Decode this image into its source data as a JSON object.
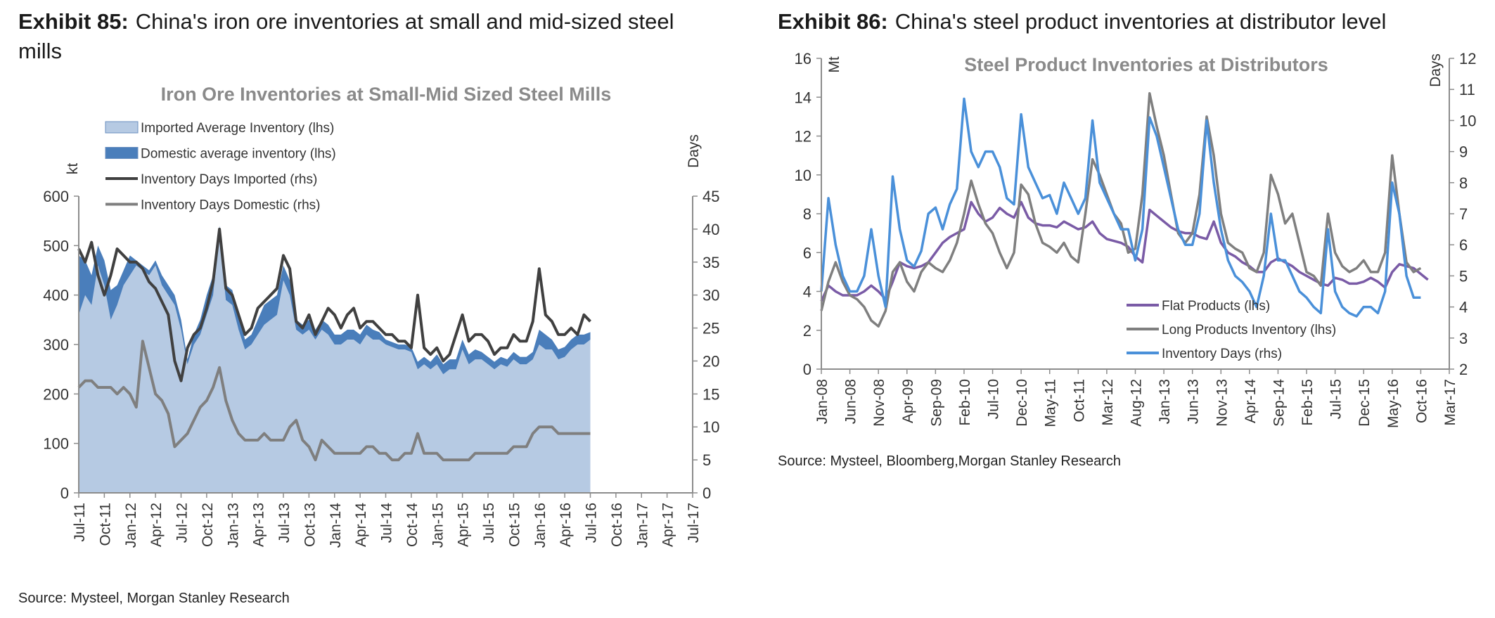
{
  "chart_data": [
    {
      "exhibit_label": "Exhibit 85:",
      "exhibit_title": "China's iron ore inventories at small and mid-sized steel mills",
      "title": "Iron Ore Inventories at Small-Mid Sized Steel Mills",
      "type": "area",
      "ylabel": "kt",
      "y2label": "Days",
      "ylim": [
        0,
        600
      ],
      "y2lim": [
        0,
        45
      ],
      "y_ticks": [
        "0",
        "100",
        "200",
        "300",
        "400",
        "500",
        "600"
      ],
      "y2_ticks": [
        "0",
        "5",
        "10",
        "15",
        "20",
        "25",
        "30",
        "35",
        "40",
        "45"
      ],
      "x_ticks": [
        "Jul-11",
        "Oct-11",
        "Jan-12",
        "Apr-12",
        "Jul-12",
        "Oct-12",
        "Jan-13",
        "Apr-13",
        "Jul-13",
        "Oct-13",
        "Jan-14",
        "Apr-14",
        "Jul-14",
        "Oct-14",
        "Jan-15",
        "Apr-15",
        "Jul-15",
        "Oct-15",
        "Jan-16",
        "Apr-16",
        "Jul-16",
        "Oct-16",
        "Jan-17",
        "Apr-17",
        "Jul-17"
      ],
      "x_start": "Jul-11",
      "legend_position": "top-left",
      "grid": false,
      "x_step": 0.25,
      "series": [
        {
          "name": "Imported Average Inventory (lhs)",
          "kind": "area",
          "axis": "lhs",
          "color": "#b6cae3",
          "values": [
            360,
            400,
            380,
            460,
            420,
            350,
            380,
            420,
            440,
            460,
            450,
            440,
            460,
            420,
            400,
            380,
            330,
            260,
            300,
            320,
            360,
            400,
            520,
            390,
            380,
            330,
            290,
            300,
            320,
            340,
            350,
            360,
            430,
            400,
            330,
            320,
            330,
            310,
            330,
            320,
            300,
            300,
            310,
            310,
            300,
            320,
            310,
            310,
            300,
            295,
            290,
            290,
            285,
            250,
            260,
            250,
            260,
            240,
            250,
            250,
            290,
            260,
            270,
            270,
            260,
            250,
            260,
            255,
            270,
            260,
            260,
            270,
            300,
            290,
            290,
            270,
            275,
            290,
            300,
            300,
            310
          ]
        },
        {
          "name": "Domestic average inventory (lhs)",
          "kind": "area",
          "axis": "lhs",
          "color": "#4a7ebb",
          "values": [
            480,
            470,
            440,
            500,
            470,
            410,
            420,
            450,
            480,
            470,
            460,
            450,
            470,
            440,
            420,
            400,
            350,
            270,
            320,
            350,
            400,
            440,
            540,
            420,
            410,
            360,
            310,
            320,
            350,
            380,
            390,
            400,
            460,
            430,
            350,
            340,
            350,
            330,
            350,
            340,
            320,
            320,
            330,
            330,
            320,
            340,
            330,
            325,
            310,
            305,
            300,
            300,
            295,
            265,
            275,
            265,
            280,
            260,
            270,
            270,
            310,
            280,
            290,
            285,
            275,
            265,
            275,
            270,
            285,
            275,
            275,
            285,
            330,
            320,
            310,
            290,
            295,
            310,
            320,
            320,
            325
          ]
        },
        {
          "name": "Inventory Days Imported (rhs)",
          "kind": "line",
          "axis": "rhs",
          "color": "#404040",
          "values": [
            37,
            35,
            38,
            33,
            30,
            33,
            37,
            36,
            35,
            35,
            34,
            32,
            31,
            29,
            27,
            20,
            17,
            22,
            24,
            25,
            28,
            32,
            40,
            31,
            30,
            27,
            24,
            25,
            28,
            29,
            30,
            31,
            36,
            34,
            26,
            25,
            27,
            24,
            26,
            28,
            27,
            25,
            27,
            28,
            25,
            26,
            26,
            25,
            24,
            24,
            23,
            23,
            22,
            30,
            22,
            21,
            22,
            20,
            21,
            24,
            27,
            23,
            24,
            24,
            23,
            21,
            22,
            22,
            24,
            23,
            23,
            26,
            34,
            27,
            26,
            24,
            24,
            25,
            24,
            27,
            26
          ]
        },
        {
          "name": "Inventory Days Domestic (rhs)",
          "kind": "line",
          "axis": "rhs",
          "color": "#7f7f7f",
          "values": [
            16,
            17,
            17,
            16,
            16,
            16,
            15,
            16,
            15,
            13,
            23,
            19,
            15,
            14,
            12,
            7,
            8,
            9,
            11,
            13,
            14,
            16,
            19,
            14,
            11,
            9,
            8,
            8,
            8,
            9,
            8,
            8,
            8,
            10,
            11,
            8,
            7,
            5,
            8,
            7,
            6,
            6,
            6,
            6,
            6,
            7,
            7,
            6,
            6,
            5,
            5,
            6,
            6,
            9,
            6,
            6,
            6,
            5,
            5,
            5,
            5,
            5,
            6,
            6,
            6,
            6,
            6,
            6,
            7,
            7,
            7,
            9,
            10,
            10,
            10,
            9,
            9,
            9,
            9,
            9,
            9
          ]
        }
      ],
      "source": "Source: Mysteel, Morgan Stanley Research"
    },
    {
      "exhibit_label": "Exhibit 86:",
      "exhibit_title": "China's steel product inventories at distributor level",
      "title": "Steel Product Inventories at Distributors",
      "type": "line",
      "ylabel": "Mt",
      "y2label": "Days",
      "ylim": [
        0,
        16
      ],
      "y2lim": [
        2,
        12
      ],
      "y_ticks": [
        "0",
        "2",
        "4",
        "6",
        "8",
        "10",
        "12",
        "14",
        "16"
      ],
      "y2_ticks": [
        "2",
        "3",
        "4",
        "5",
        "6",
        "7",
        "8",
        "9",
        "10",
        "11",
        "12"
      ],
      "x_ticks": [
        "Jan-08",
        "Jun-08",
        "Nov-08",
        "Apr-09",
        "Sep-09",
        "Feb-10",
        "Jul-10",
        "Dec-10",
        "May-11",
        "Oct-11",
        "Mar-12",
        "Aug-12",
        "Jan-13",
        "Jun-13",
        "Nov-13",
        "Apr-14",
        "Sep-14",
        "Feb-15",
        "Jul-15",
        "Dec-15",
        "May-16",
        "Oct-16",
        "Mar-17"
      ],
      "x_start": "Jan-08",
      "legend_position": "bottom-right",
      "grid": false,
      "x_step": 0.25,
      "series": [
        {
          "name": "Flat Products (lhs)",
          "axis": "lhs",
          "color": "#7a5ba6",
          "values": [
            3.5,
            4.3,
            4.0,
            3.8,
            3.8,
            3.8,
            4.0,
            4.3,
            4.0,
            3.6,
            4.5,
            5.5,
            5.3,
            5.2,
            5.3,
            5.5,
            6.0,
            6.5,
            6.8,
            7.0,
            7.2,
            8.6,
            8.0,
            7.6,
            7.8,
            8.3,
            8.0,
            7.8,
            8.6,
            7.8,
            7.5,
            7.4,
            7.4,
            7.3,
            7.6,
            7.4,
            7.2,
            7.3,
            7.6,
            7.0,
            6.7,
            6.6,
            6.5,
            6.3,
            5.8,
            5.5,
            8.2,
            7.9,
            7.6,
            7.3,
            7.1,
            7.0,
            7.0,
            6.8,
            6.7,
            7.6,
            6.5,
            6.0,
            5.8,
            5.5,
            5.3,
            5.0,
            5.0,
            5.5,
            5.7,
            5.5,
            5.3,
            5.0,
            4.8,
            4.6,
            4.4,
            4.3,
            4.7,
            4.6,
            4.4,
            4.4,
            4.5,
            4.7,
            4.5,
            4.2,
            5.0,
            5.4,
            5.3,
            5.2,
            4.9,
            4.6
          ]
        },
        {
          "name": "Long Products Inventory (lhs)",
          "axis": "lhs",
          "color": "#7f7f7f",
          "values": [
            3.0,
            4.5,
            5.5,
            4.5,
            3.8,
            3.6,
            3.2,
            2.5,
            2.2,
            3.0,
            5.0,
            5.5,
            4.5,
            4.0,
            5.0,
            5.5,
            5.2,
            5.0,
            5.6,
            6.5,
            8.0,
            9.7,
            8.5,
            7.5,
            7.0,
            6.0,
            5.2,
            6.0,
            9.5,
            9.0,
            7.5,
            6.5,
            6.3,
            6.0,
            6.5,
            5.8,
            5.5,
            8.0,
            10.8,
            10.0,
            9.0,
            8.0,
            7.5,
            6.0,
            6.2,
            9.0,
            14.2,
            12.5,
            11.0,
            9.0,
            7.0,
            6.5,
            7.0,
            9.0,
            13.0,
            11.0,
            8.0,
            6.5,
            6.2,
            6.0,
            5.2,
            5.0,
            6.0,
            10.0,
            9.0,
            7.5,
            8.0,
            6.5,
            5.0,
            4.8,
            4.3,
            8.0,
            6.0,
            5.3,
            5.0,
            5.2,
            5.6,
            5.0,
            5.0,
            6.0,
            11.0,
            8.0,
            5.5,
            5.0,
            5.2
          ]
        },
        {
          "name": "Inventory Days (rhs)",
          "axis": "rhs",
          "color": "#4a90d9",
          "values": [
            4.5,
            7.5,
            6.0,
            5.0,
            4.5,
            4.5,
            5.0,
            6.5,
            5.0,
            4.0,
            8.2,
            6.5,
            5.5,
            5.3,
            5.8,
            7.0,
            7.2,
            6.5,
            7.3,
            7.8,
            10.7,
            9.0,
            8.5,
            9.0,
            9.0,
            8.5,
            7.5,
            7.3,
            10.2,
            8.5,
            8.0,
            7.5,
            7.6,
            7.0,
            8.0,
            7.5,
            7.0,
            7.5,
            10.0,
            8.0,
            7.5,
            7.0,
            6.5,
            6.5,
            5.5,
            6.5,
            10.1,
            9.5,
            8.5,
            7.5,
            6.5,
            6.0,
            6.0,
            7.0,
            10.0,
            8.0,
            6.5,
            5.5,
            5.0,
            4.8,
            4.5,
            4.0,
            5.0,
            7.0,
            5.5,
            5.5,
            5.0,
            4.5,
            4.3,
            4.0,
            3.8,
            6.5,
            4.5,
            4.0,
            3.8,
            3.7,
            4.0,
            4.0,
            3.8,
            4.5,
            8.0,
            7.0,
            5.0,
            4.3,
            4.3
          ]
        }
      ],
      "source": "Source: Mysteel, Bloomberg,Morgan Stanley Research"
    }
  ]
}
